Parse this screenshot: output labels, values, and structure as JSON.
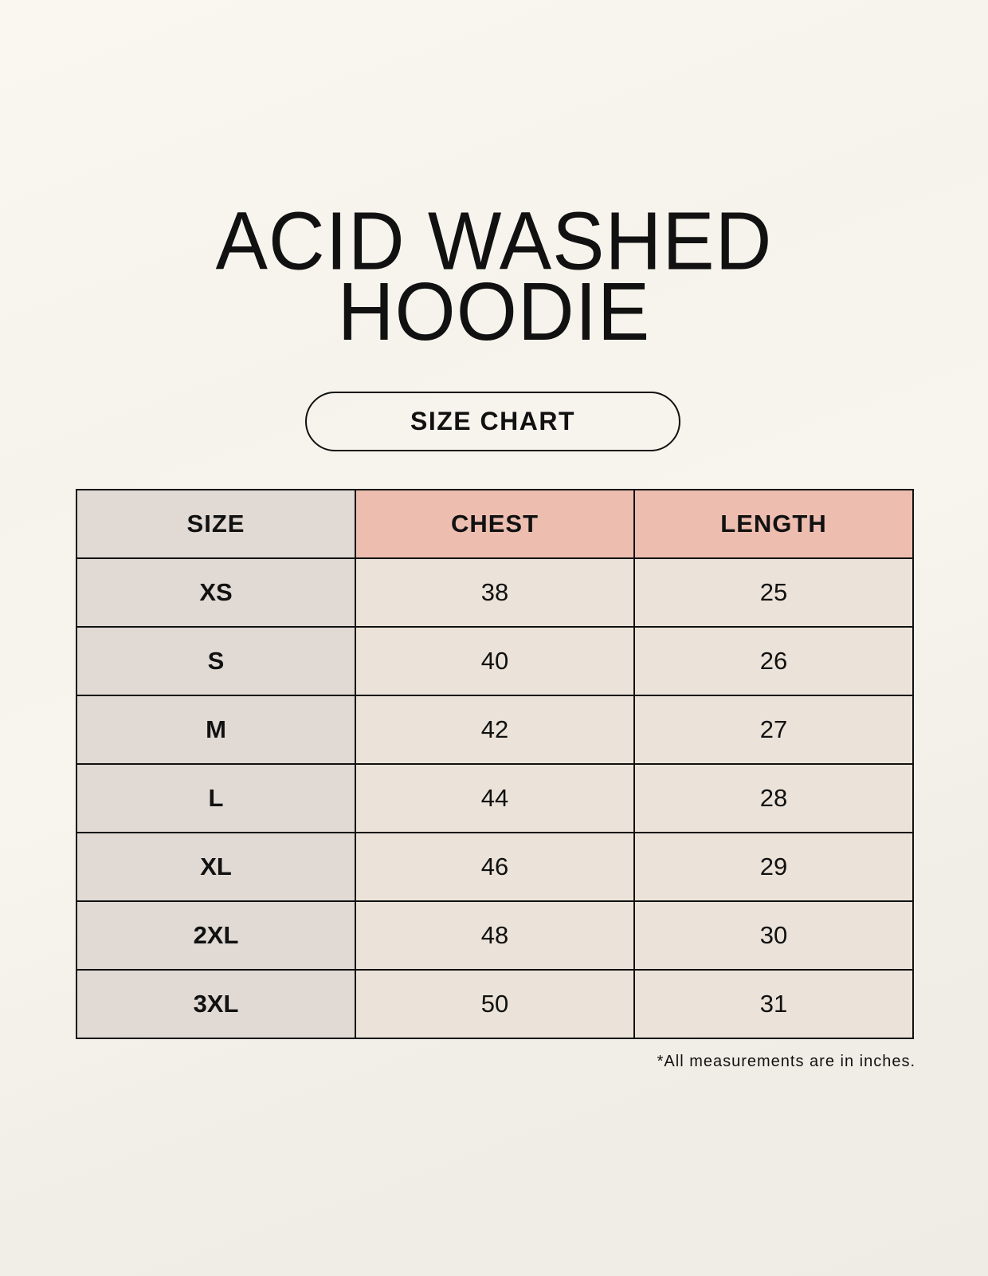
{
  "title_lines": [
    "ACID WASHED",
    "HOODIE"
  ],
  "subtitle": "SIZE CHART",
  "table": {
    "headers": [
      "SIZE",
      "CHEST",
      "LENGTH"
    ],
    "rows": [
      [
        "XS",
        "38",
        "25"
      ],
      [
        "S",
        "40",
        "26"
      ],
      [
        "M",
        "42",
        "27"
      ],
      [
        "L",
        "44",
        "28"
      ],
      [
        "XL",
        "46",
        "29"
      ],
      [
        "2XL",
        "48",
        "30"
      ],
      [
        "3XL",
        "50",
        "31"
      ]
    ]
  },
  "footnote": "*All measurements are in inches.",
  "colors": {
    "size_column": "#e0d9d4",
    "header_accent": "#edbdb0",
    "cell": "#ebe3d9"
  }
}
